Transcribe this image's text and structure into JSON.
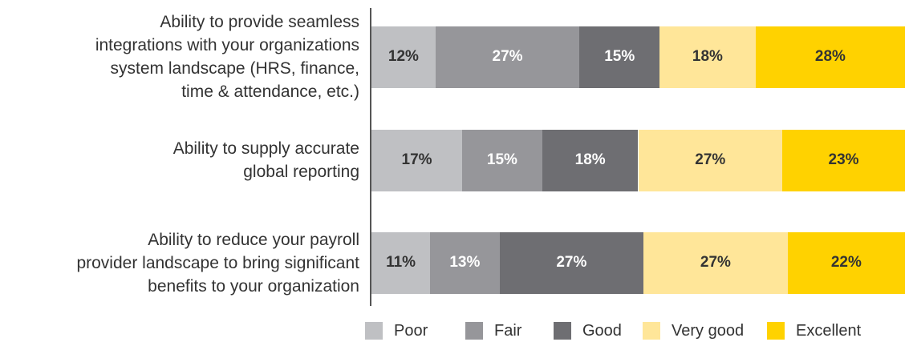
{
  "chart_data": {
    "type": "stacked-bar-horizontal",
    "categories": [
      [
        "Ability to provide seamless",
        "integrations with your organizations",
        "system landscape (HRS, finance,",
        "time & attendance, etc.)"
      ],
      [
        "Ability to supply accurate",
        "global reporting"
      ],
      [
        "Ability to reduce your payroll",
        "provider landscape to bring significant",
        "benefits to your organization"
      ]
    ],
    "xlim": [
      0,
      100
    ],
    "series": [
      {
        "name": "Poor",
        "color": "#bfc0c3",
        "label_color": "#333333",
        "values": [
          12,
          17,
          11
        ],
        "value_labels": [
          "12%",
          "17%",
          "11%"
        ]
      },
      {
        "name": "Fair",
        "color": "#96969a",
        "label_color": "#ffffff",
        "values": [
          27,
          15,
          13
        ],
        "value_labels": [
          "27%",
          "15%",
          "13%"
        ]
      },
      {
        "name": "Good",
        "color": "#6e6e72",
        "label_color": "#ffffff",
        "values": [
          15,
          18,
          27
        ],
        "value_labels": [
          "15%",
          "18%",
          "27%"
        ]
      },
      {
        "name": "Very good",
        "color": "#ffe699",
        "label_color": "#333333",
        "values": [
          18,
          27,
          27
        ],
        "value_labels": [
          "18%",
          "27%",
          "27%"
        ]
      },
      {
        "name": "Excellent",
        "color": "#ffd200",
        "label_color": "#333333",
        "values": [
          28,
          23,
          22
        ],
        "value_labels": [
          "28%",
          "23%",
          "22%"
        ]
      }
    ]
  }
}
